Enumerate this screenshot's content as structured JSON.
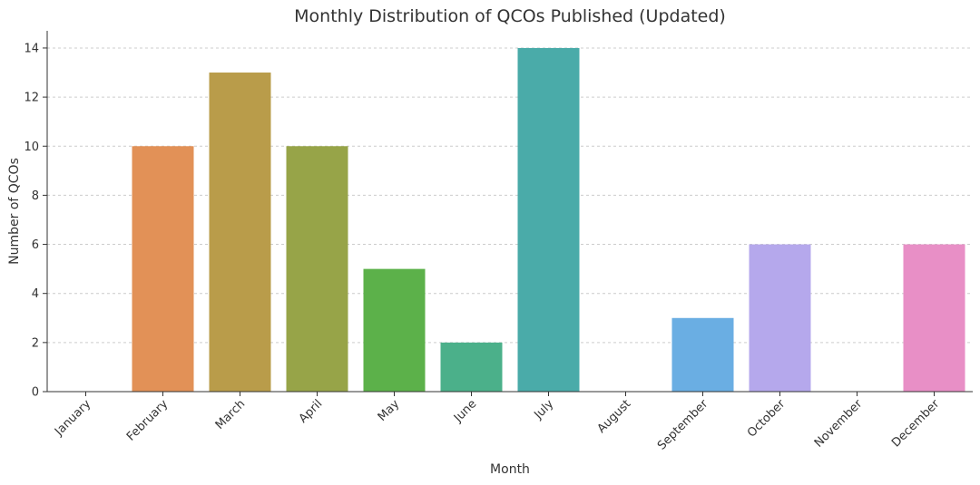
{
  "chart_data": {
    "type": "bar",
    "title": "Monthly Distribution of QCOs Published (Updated)",
    "xlabel": "Month",
    "ylabel": "Number of QCOs",
    "categories": [
      "January",
      "February",
      "March",
      "April",
      "May",
      "June",
      "July",
      "August",
      "September",
      "October",
      "November",
      "December"
    ],
    "values": [
      0,
      10,
      13,
      10,
      5,
      2,
      14,
      0,
      3,
      6,
      0,
      6
    ],
    "colors": [
      "#e88a8a",
      "#e29157",
      "#b99c4a",
      "#97a448",
      "#5cb14a",
      "#4bb08a",
      "#4aaba9",
      "#4ea3d6",
      "#6aaee3",
      "#b5a8ec",
      "#d99be0",
      "#e88fc6"
    ],
    "ylim": [
      0,
      14.7
    ],
    "yticks": [
      0,
      2,
      4,
      6,
      8,
      10,
      12,
      14
    ],
    "grid": "horizontal-dashed",
    "legend": "none"
  }
}
